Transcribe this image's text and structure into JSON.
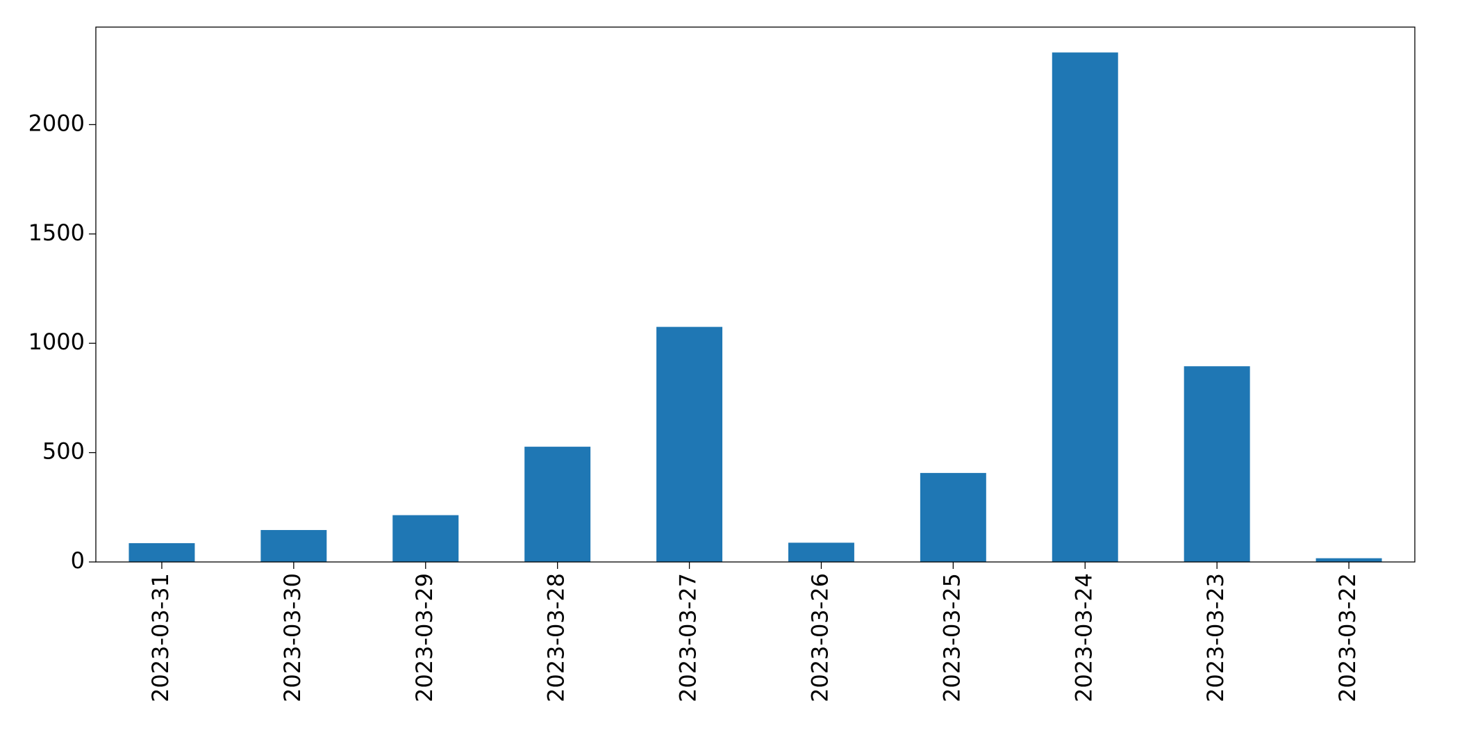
{
  "chart_data": {
    "type": "bar",
    "categories": [
      "2023-03-31",
      "2023-03-30",
      "2023-03-29",
      "2023-03-28",
      "2023-03-27",
      "2023-03-26",
      "2023-03-25",
      "2023-03-24",
      "2023-03-23",
      "2023-03-22"
    ],
    "values": [
      86,
      146,
      214,
      527,
      1075,
      88,
      407,
      2330,
      895,
      17
    ],
    "color": "#1f77b4",
    "ylim": [
      0,
      2446
    ],
    "yticks": [
      0,
      500,
      1000,
      1500,
      2000
    ],
    "grid": false
  }
}
